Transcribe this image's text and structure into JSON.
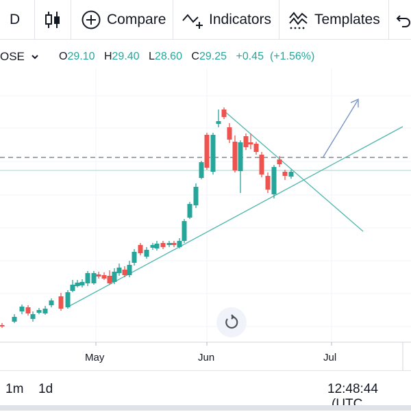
{
  "toolbar": {
    "interval": "D",
    "compare_label": "Compare",
    "indicators_label": "Indicators",
    "templates_label": "Templates"
  },
  "symbol": {
    "name": "OSE",
    "o_key": "O",
    "o_val": "29.10",
    "h_key": "H",
    "h_val": "29.40",
    "l_key": "L",
    "l_val": "28.60",
    "c_key": "C",
    "c_val": "29.25",
    "change": "+0.45",
    "change_pct": "(+1.56%)"
  },
  "x_axis": {
    "may": "May",
    "jun": "Jun",
    "jul": "Jul"
  },
  "bottom": {
    "range_1m": "1m",
    "range_1d": "1d",
    "clock": "12:48:44",
    "tz": "(UTC"
  },
  "colors": {
    "up": "#26a69a",
    "down": "#ef5350",
    "trendline": "#4db6ac",
    "arrow": "#6f8dc2"
  },
  "icons": [
    "candles-icon",
    "plus-circle-icon",
    "indicators-icon",
    "templates-icon",
    "undo-icon",
    "reset-icon",
    "chevron-down-icon"
  ],
  "chart_data": {
    "type": "candlestick",
    "x": [
      "May",
      "Jun",
      "Jul"
    ],
    "last": {
      "open": 29.1,
      "high": 29.4,
      "low": 28.6,
      "close": 29.25
    }
  }
}
